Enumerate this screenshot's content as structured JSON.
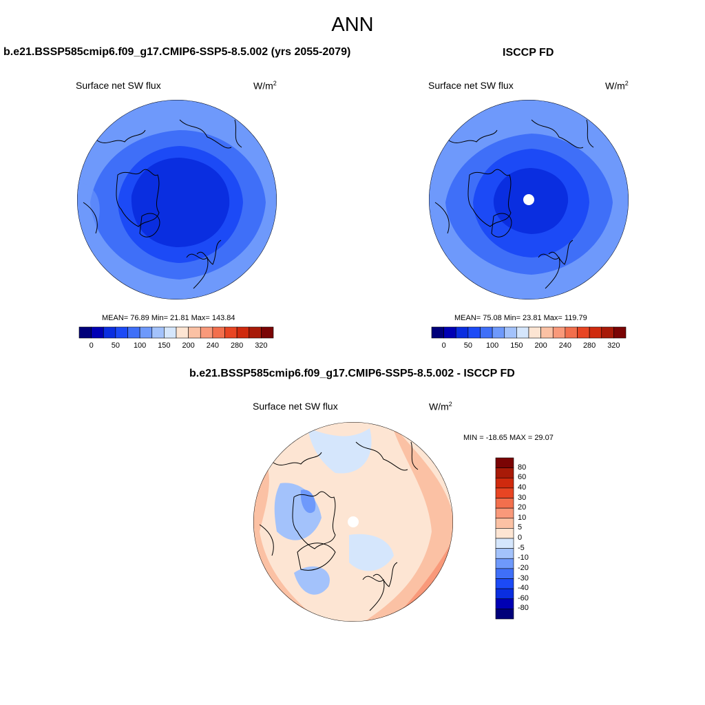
{
  "page_title": "ANN",
  "colorbar_top": {
    "colors": [
      "#00007a",
      "#0000b4",
      "#0a2ee0",
      "#1c4af6",
      "#3f6ff8",
      "#6e99fb",
      "#a3c2fb",
      "#d5e6fc",
      "#fde5d3",
      "#fbc1a4",
      "#f9997a",
      "#f26f4d",
      "#e84523",
      "#cf2a0e",
      "#a81a08",
      "#7a0404"
    ],
    "labels": [
      "0",
      "50",
      "100",
      "150",
      "200",
      "240",
      "280",
      "320"
    ]
  },
  "colorbar_diff": {
    "colors": [
      "#00007a",
      "#0000b4",
      "#0a2ee0",
      "#1c4af6",
      "#3f6ff8",
      "#6e99fb",
      "#a3c2fb",
      "#d5e6fc",
      "#fde5d3",
      "#fbc1a4",
      "#f9997a",
      "#f26f4d",
      "#e84523",
      "#cf2a0e",
      "#a81a08",
      "#7a0404"
    ],
    "labels": [
      "80",
      "60",
      "40",
      "30",
      "20",
      "10",
      "5",
      "0",
      "-5",
      "-10",
      "-20",
      "-30",
      "-40",
      "-60",
      "-80"
    ]
  },
  "panels": [
    {
      "title": "b.e21.BSSP585cmip6.f09_g17.CMIP6-SSP5-8.5.002 (yrs 2055-2079)",
      "variable": "Surface net SW flux",
      "units": "W/m",
      "units_sup": "2",
      "stats": "MEAN=  76.89  Min=  21.81  Max= 143.84",
      "colors": {
        "outer": "#6e99fb",
        "mid": "#3f6ff8",
        "inner": "#1c4af6",
        "core": "#0a2ee0"
      }
    },
    {
      "title": "ISCCP FD",
      "variable": "Surface net SW flux",
      "units": "W/m",
      "units_sup": "2",
      "stats": "MEAN=  75.08  Min=  23.81  Max= 119.79",
      "colors": {
        "outer": "#6e99fb",
        "mid": "#3f6ff8",
        "inner": "#1c4af6",
        "core": "#0a2ee0"
      }
    },
    {
      "title": "b.e21.BSSP585cmip6.f09_g17.CMIP6-SSP5-8.5.002 - ISCCP FD",
      "variable": "Surface net SW flux",
      "units": "W/m",
      "units_sup": "2",
      "stats": "MIN = -18.65 MAX =  29.07",
      "colors": {
        "base": "#fde5d3",
        "warm1": "#fbc1a4",
        "warm2": "#f9997a",
        "cool1": "#d5e6fc",
        "cool2": "#a3c2fb",
        "cool3": "#6e99fb"
      }
    }
  ]
}
